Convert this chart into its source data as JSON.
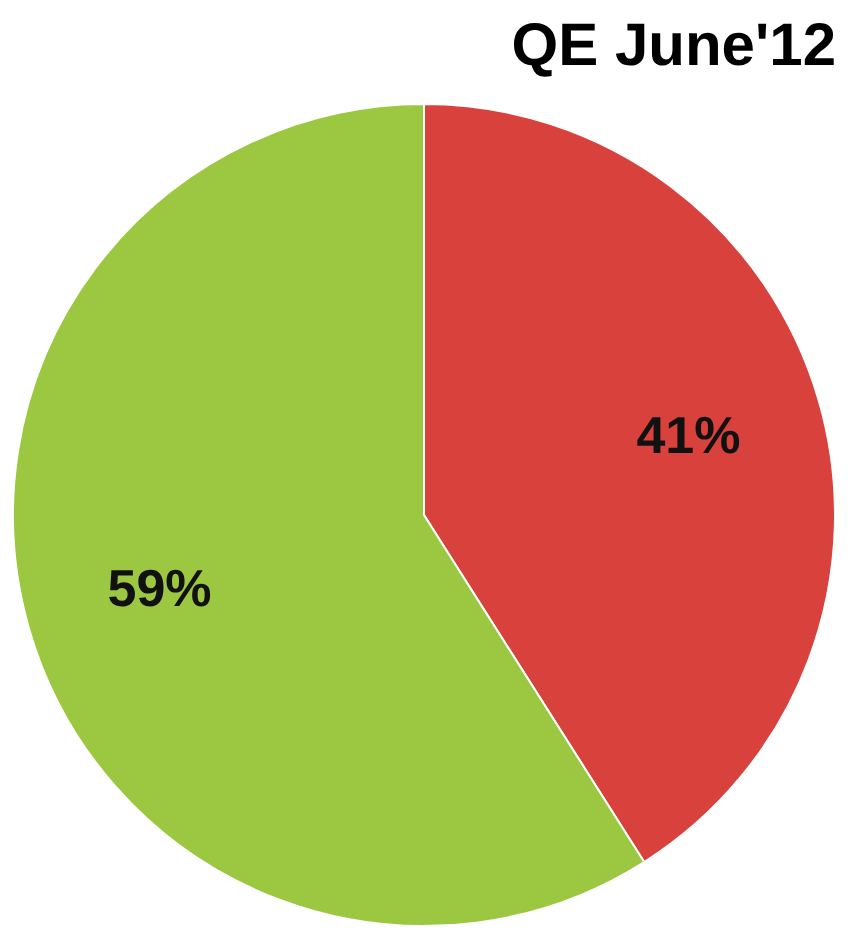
{
  "chart_data": {
    "type": "pie",
    "title": "QE June'12",
    "categories": [
      null,
      null
    ],
    "values": [
      41,
      59
    ],
    "colors": [
      "#d9413c",
      "#9cc741"
    ],
    "value_labels": [
      "41%",
      "59%"
    ],
    "legend": false
  }
}
